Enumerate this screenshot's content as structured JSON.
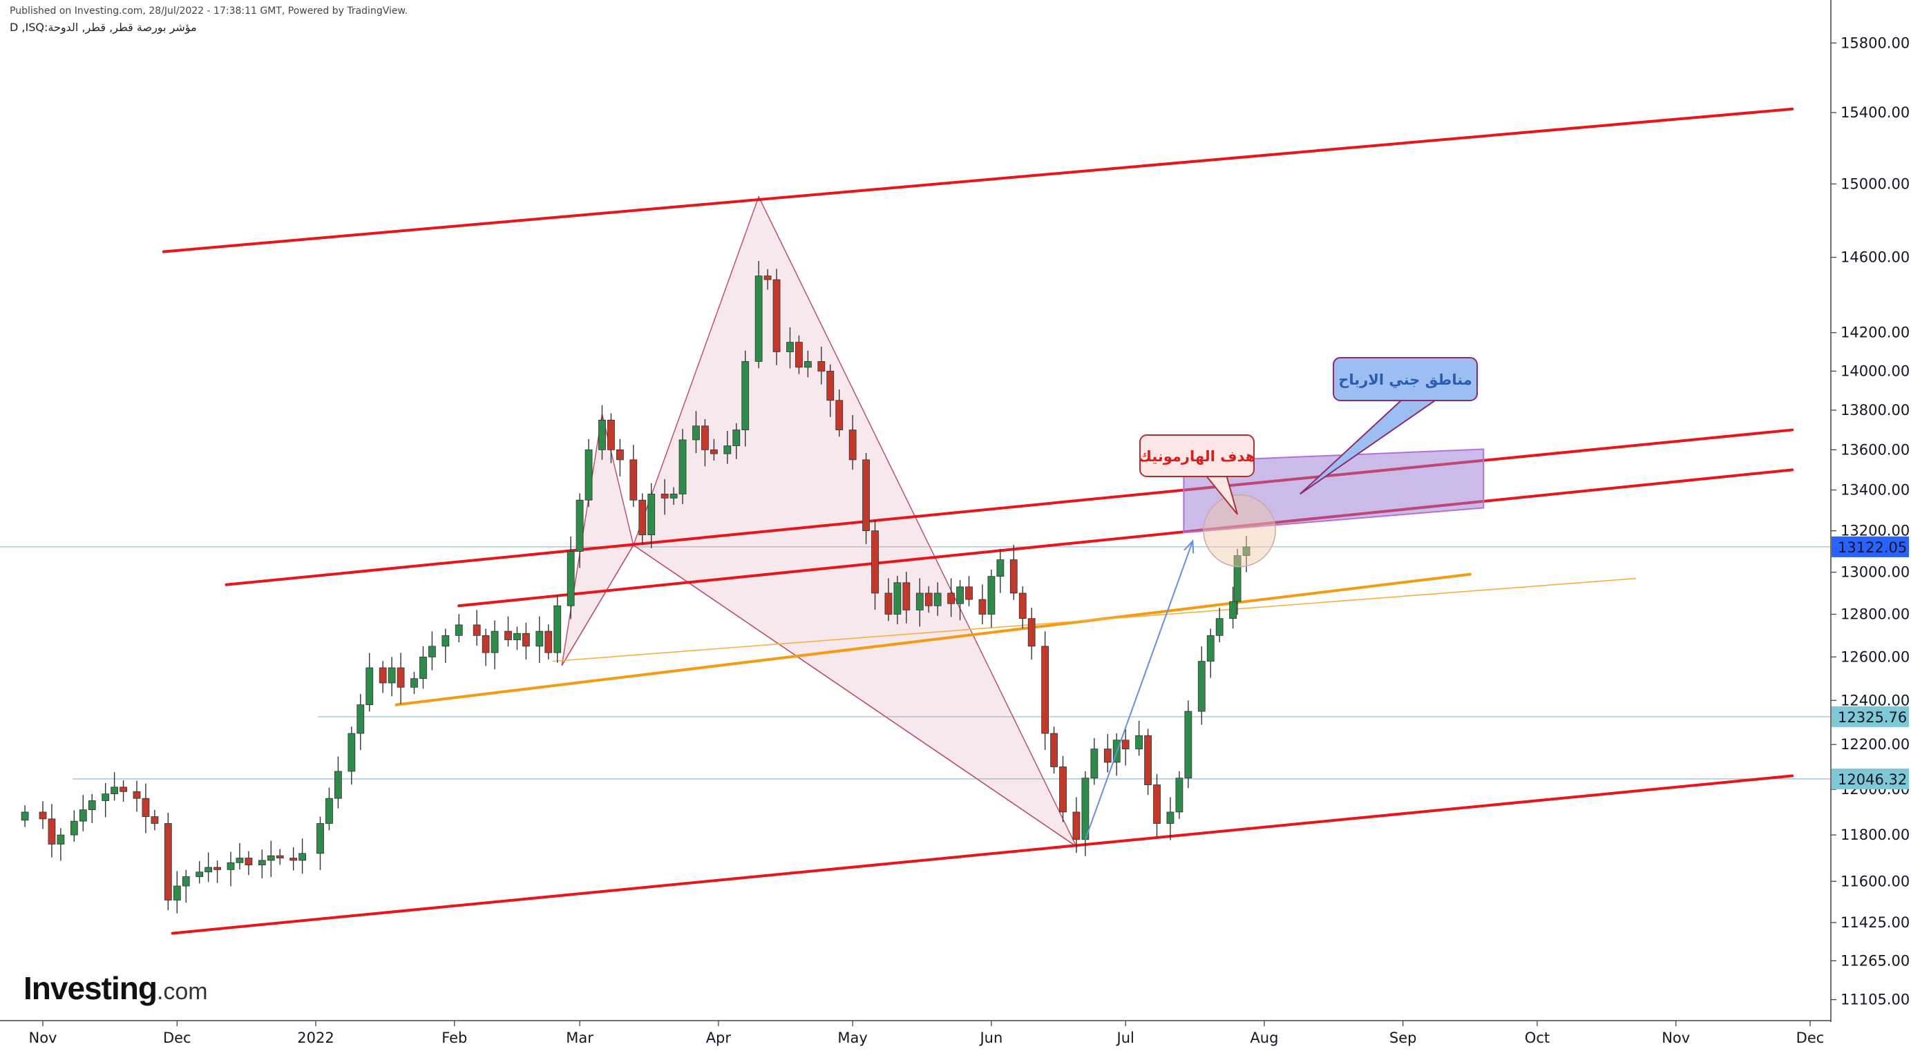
{
  "header": {
    "published": "Published on Investing.com, 28/Jul/2022 - 17:38:11 GMT, Powered by TradingView.",
    "symbol": "D ,ISQ:مؤشر بورصة قطر, قطر, الدوحة"
  },
  "logo": {
    "main": "Investing",
    "suffix": ".com"
  },
  "colors": {
    "up": "#26a69a",
    "up_fill": "#2e8b4a",
    "down": "#c0392b",
    "channel": "#e8151b",
    "trend": "#f39c12",
    "price_label": "#2962ff",
    "level_label": "#7ec8d8"
  },
  "chart_data": {
    "type": "candlestick",
    "y_axis": {
      "scale": "log",
      "ticks": [
        15800,
        15400,
        15000,
        14600,
        14200,
        14000,
        13800,
        13600,
        13400,
        13200,
        13000,
        12800,
        12600,
        12400,
        12200,
        12000,
        11800,
        11600,
        11425,
        11265,
        11105
      ],
      "tick_labels": [
        "15800.00",
        "15400.00",
        "15000.00",
        "14600.00",
        "14200.00",
        "14000.00",
        "13800.00",
        "13600.00",
        "13400.00",
        "13200.00",
        "13000.00",
        "12800.00",
        "12600.00",
        "12400.00",
        "12200.00",
        "12000.00",
        "11800.00",
        "11600.00",
        "11425.00",
        "11265.00",
        "11105.00"
      ]
    },
    "x_axis": {
      "months": [
        {
          "label": "Nov",
          "date": "2021-11-01"
        },
        {
          "label": "Dec",
          "date": "2021-12-01"
        },
        {
          "label": "2022",
          "date": "2022-01-01"
        },
        {
          "label": "Feb",
          "date": "2022-02-01"
        },
        {
          "label": "Mar",
          "date": "2022-03-01"
        },
        {
          "label": "Apr",
          "date": "2022-04-01"
        },
        {
          "label": "May",
          "date": "2022-05-01"
        },
        {
          "label": "Jun",
          "date": "2022-06-01"
        },
        {
          "label": "Jul",
          "date": "2022-07-01"
        },
        {
          "label": "Aug",
          "date": "2022-08-01"
        },
        {
          "label": "Sep",
          "date": "2022-09-01"
        },
        {
          "label": "Oct",
          "date": "2022-10-01"
        },
        {
          "label": "Nov",
          "date": "2022-11-01"
        },
        {
          "label": "Dec",
          "date": "2022-12-01"
        }
      ]
    },
    "price_labels": [
      {
        "value": 13122.05,
        "text": "13122.05",
        "kind": "last"
      },
      {
        "value": 12325.76,
        "text": "12325.76",
        "kind": "level"
      },
      {
        "value": 12046.32,
        "text": "12046.32",
        "kind": "level"
      }
    ],
    "closes": [
      {
        "date": "2021-10-28",
        "close": 11900
      },
      {
        "date": "2021-11-01",
        "close": 11870
      },
      {
        "date": "2021-11-03",
        "close": 11760
      },
      {
        "date": "2021-11-05",
        "close": 11800
      },
      {
        "date": "2021-11-08",
        "close": 11860
      },
      {
        "date": "2021-11-10",
        "close": 11910
      },
      {
        "date": "2021-11-12",
        "close": 11950
      },
      {
        "date": "2021-11-15",
        "close": 11980
      },
      {
        "date": "2021-11-17",
        "close": 12010
      },
      {
        "date": "2021-11-19",
        "close": 11990
      },
      {
        "date": "2021-11-22",
        "close": 11960
      },
      {
        "date": "2021-11-24",
        "close": 11880
      },
      {
        "date": "2021-11-26",
        "close": 11850
      },
      {
        "date": "2021-11-29",
        "close": 11520
      },
      {
        "date": "2021-12-01",
        "close": 11580
      },
      {
        "date": "2021-12-03",
        "close": 11620
      },
      {
        "date": "2021-12-06",
        "close": 11640
      },
      {
        "date": "2021-12-08",
        "close": 11660
      },
      {
        "date": "2021-12-10",
        "close": 11650
      },
      {
        "date": "2021-12-13",
        "close": 11680
      },
      {
        "date": "2021-12-15",
        "close": 11700
      },
      {
        "date": "2021-12-17",
        "close": 11670
      },
      {
        "date": "2021-12-20",
        "close": 11690
      },
      {
        "date": "2021-12-22",
        "close": 11710
      },
      {
        "date": "2021-12-24",
        "close": 11700
      },
      {
        "date": "2021-12-27",
        "close": 11690
      },
      {
        "date": "2021-12-29",
        "close": 11720
      },
      {
        "date": "2022-01-02",
        "close": 11850
      },
      {
        "date": "2022-01-04",
        "close": 11960
      },
      {
        "date": "2022-01-06",
        "close": 12080
      },
      {
        "date": "2022-01-09",
        "close": 12250
      },
      {
        "date": "2022-01-11",
        "close": 12380
      },
      {
        "date": "2022-01-13",
        "close": 12550
      },
      {
        "date": "2022-01-16",
        "close": 12480
      },
      {
        "date": "2022-01-18",
        "close": 12550
      },
      {
        "date": "2022-01-20",
        "close": 12460
      },
      {
        "date": "2022-01-23",
        "close": 12500
      },
      {
        "date": "2022-01-25",
        "close": 12600
      },
      {
        "date": "2022-01-27",
        "close": 12650
      },
      {
        "date": "2022-01-30",
        "close": 12700
      },
      {
        "date": "2022-02-02",
        "close": 12750
      },
      {
        "date": "2022-02-06",
        "close": 12700
      },
      {
        "date": "2022-02-08",
        "close": 12620
      },
      {
        "date": "2022-02-10",
        "close": 12720
      },
      {
        "date": "2022-02-13",
        "close": 12680
      },
      {
        "date": "2022-02-15",
        "close": 12710
      },
      {
        "date": "2022-02-17",
        "close": 12650
      },
      {
        "date": "2022-02-20",
        "close": 12720
      },
      {
        "date": "2022-02-22",
        "close": 12620
      },
      {
        "date": "2022-02-24",
        "close": 12840
      },
      {
        "date": "2022-02-27",
        "close": 13100
      },
      {
        "date": "2022-03-01",
        "close": 13350
      },
      {
        "date": "2022-03-03",
        "close": 13600
      },
      {
        "date": "2022-03-06",
        "close": 13750
      },
      {
        "date": "2022-03-08",
        "close": 13600
      },
      {
        "date": "2022-03-10",
        "close": 13550
      },
      {
        "date": "2022-03-13",
        "close": 13350
      },
      {
        "date": "2022-03-15",
        "close": 13180
      },
      {
        "date": "2022-03-17",
        "close": 13380
      },
      {
        "date": "2022-03-20",
        "close": 13360
      },
      {
        "date": "2022-03-22",
        "close": 13380
      },
      {
        "date": "2022-03-24",
        "close": 13650
      },
      {
        "date": "2022-03-27",
        "close": 13720
      },
      {
        "date": "2022-03-29",
        "close": 13600
      },
      {
        "date": "2022-03-31",
        "close": 13580
      },
      {
        "date": "2022-04-03",
        "close": 13620
      },
      {
        "date": "2022-04-05",
        "close": 13700
      },
      {
        "date": "2022-04-07",
        "close": 14050
      },
      {
        "date": "2022-04-10",
        "close": 14500
      },
      {
        "date": "2022-04-12",
        "close": 14480
      },
      {
        "date": "2022-04-14",
        "close": 14100
      },
      {
        "date": "2022-04-17",
        "close": 14150
      },
      {
        "date": "2022-04-19",
        "close": 14020
      },
      {
        "date": "2022-04-21",
        "close": 14050
      },
      {
        "date": "2022-04-24",
        "close": 14000
      },
      {
        "date": "2022-04-26",
        "close": 13850
      },
      {
        "date": "2022-04-28",
        "close": 13700
      },
      {
        "date": "2022-05-01",
        "close": 13550
      },
      {
        "date": "2022-05-04",
        "close": 13200
      },
      {
        "date": "2022-05-06",
        "close": 12900
      },
      {
        "date": "2022-05-09",
        "close": 12800
      },
      {
        "date": "2022-05-11",
        "close": 12950
      },
      {
        "date": "2022-05-13",
        "close": 12820
      },
      {
        "date": "2022-05-16",
        "close": 12900
      },
      {
        "date": "2022-05-18",
        "close": 12840
      },
      {
        "date": "2022-05-20",
        "close": 12900
      },
      {
        "date": "2022-05-23",
        "close": 12850
      },
      {
        "date": "2022-05-25",
        "close": 12930
      },
      {
        "date": "2022-05-27",
        "close": 12870
      },
      {
        "date": "2022-05-30",
        "close": 12800
      },
      {
        "date": "2022-06-01",
        "close": 12980
      },
      {
        "date": "2022-06-03",
        "close": 13060
      },
      {
        "date": "2022-06-06",
        "close": 12900
      },
      {
        "date": "2022-06-08",
        "close": 12780
      },
      {
        "date": "2022-06-10",
        "close": 12650
      },
      {
        "date": "2022-06-13",
        "close": 12250
      },
      {
        "date": "2022-06-15",
        "close": 12100
      },
      {
        "date": "2022-06-17",
        "close": 11900
      },
      {
        "date": "2022-06-20",
        "close": 11780
      },
      {
        "date": "2022-06-22",
        "close": 12050
      },
      {
        "date": "2022-06-24",
        "close": 12180
      },
      {
        "date": "2022-06-27",
        "close": 12120
      },
      {
        "date": "2022-06-29",
        "close": 12220
      },
      {
        "date": "2022-07-01",
        "close": 12180
      },
      {
        "date": "2022-07-04",
        "close": 12240
      },
      {
        "date": "2022-07-06",
        "close": 12020
      },
      {
        "date": "2022-07-08",
        "close": 11850
      },
      {
        "date": "2022-07-11",
        "close": 11900
      },
      {
        "date": "2022-07-13",
        "close": 12050
      },
      {
        "date": "2022-07-15",
        "close": 12350
      },
      {
        "date": "2022-07-18",
        "close": 12580
      },
      {
        "date": "2022-07-20",
        "close": 12700
      },
      {
        "date": "2022-07-22",
        "close": 12780
      },
      {
        "date": "2022-07-25",
        "close": 12860
      },
      {
        "date": "2022-07-26",
        "close": 13080
      },
      {
        "date": "2022-07-28",
        "close": 13122.05
      }
    ],
    "lines": [
      {
        "kind": "channel-top",
        "from": {
          "date": "2021-11-28",
          "value": 14630
        },
        "to": {
          "date": "2022-11-27",
          "value": 15420
        }
      },
      {
        "kind": "channel-mid-upper",
        "from": {
          "date": "2021-12-12",
          "value": 12940
        },
        "to": {
          "date": "2022-11-27",
          "value": 13700
        }
      },
      {
        "kind": "channel-mid-lower",
        "from": {
          "date": "2022-02-02",
          "value": 12840
        },
        "to": {
          "date": "2022-11-27",
          "value": 13500
        }
      },
      {
        "kind": "channel-bottom",
        "from": {
          "date": "2021-11-30",
          "value": 11380
        },
        "to": {
          "date": "2022-11-27",
          "value": 12060
        }
      },
      {
        "kind": "trend-orange",
        "from": {
          "date": "2022-01-19",
          "value": 12380
        },
        "to": {
          "date": "2022-09-16",
          "value": 12990
        }
      },
      {
        "kind": "trend-orange-thin",
        "from": {
          "date": "2022-02-23",
          "value": 12580
        },
        "to": {
          "date": "2022-10-23",
          "value": 12970
        }
      }
    ],
    "harmonic_points": [
      {
        "date": "2022-02-25",
        "value": 12560
      },
      {
        "date": "2022-03-06",
        "value": 13780
      },
      {
        "date": "2022-03-13",
        "value": 13130
      },
      {
        "date": "2022-04-10",
        "value": 14930
      },
      {
        "date": "2022-06-20",
        "value": 11750
      }
    ],
    "annotations": [
      {
        "kind": "callout-red",
        "text": "هدف الهارمونيك",
        "anchor": {
          "date": "2022-07-26",
          "value": 13280
        }
      },
      {
        "kind": "callout-blue",
        "text": "مناطق جني الارباح",
        "anchor": {
          "date": "2022-08-09",
          "value": 13380
        }
      },
      {
        "kind": "zone",
        "from": {
          "date": "2022-07-14",
          "value": 13380
        },
        "to": {
          "date": "2022-09-19",
          "value": 13520
        }
      }
    ]
  }
}
